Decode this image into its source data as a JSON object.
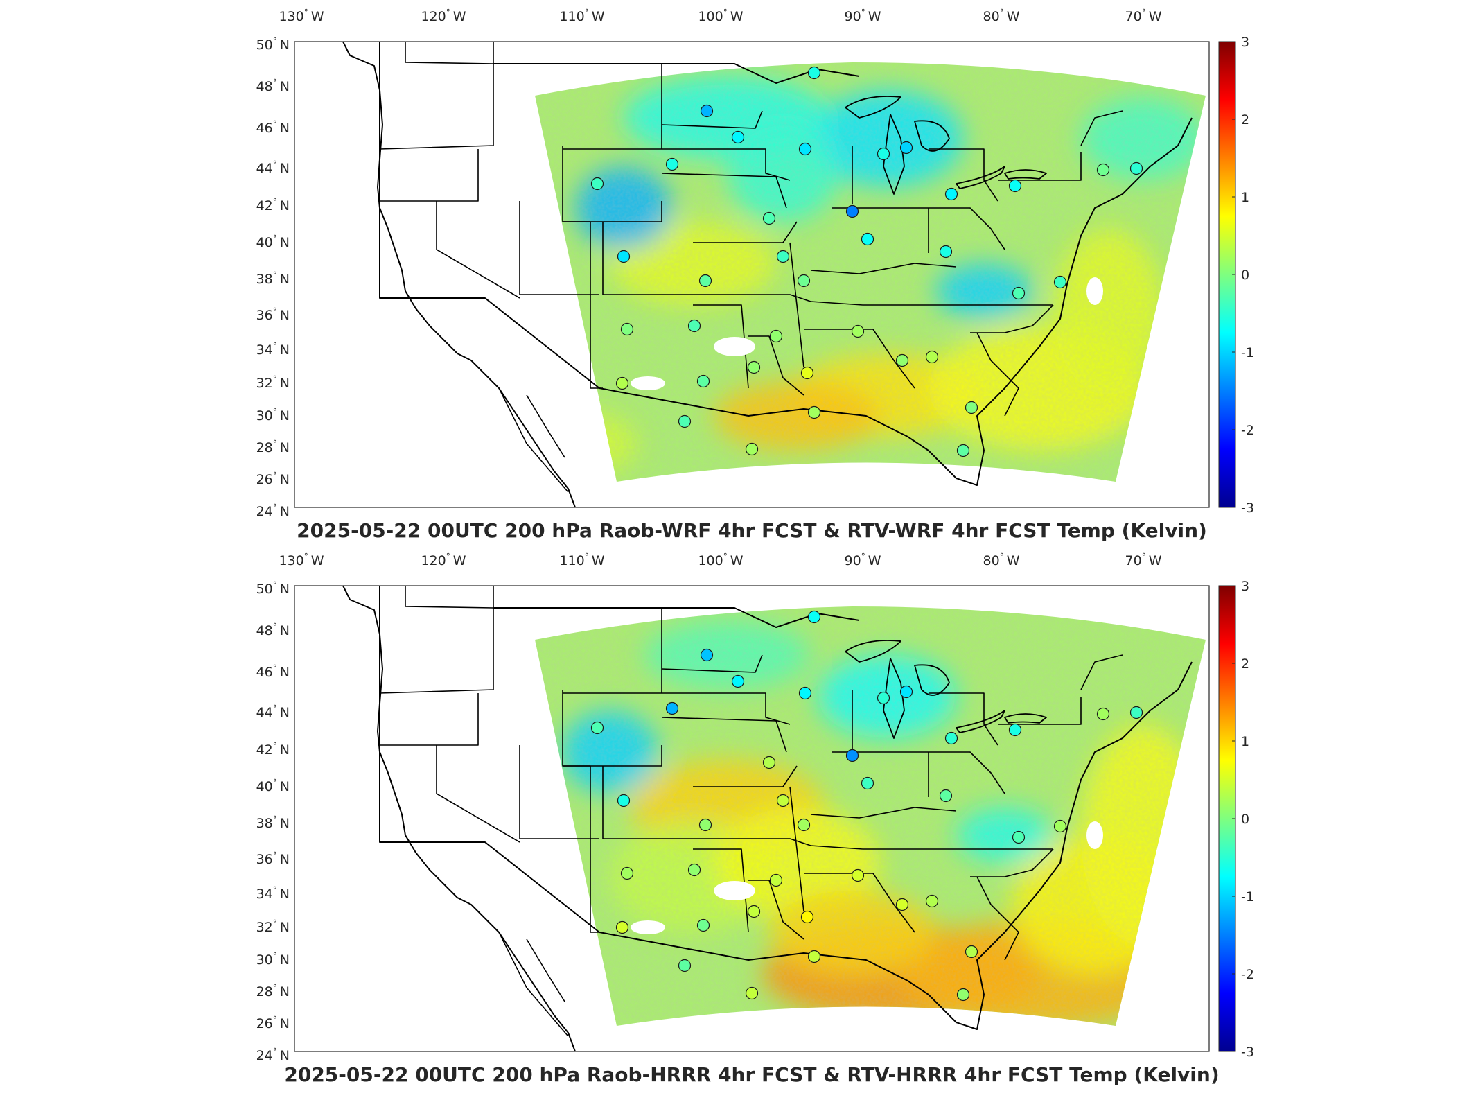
{
  "panels": [
    {
      "id": "wrf",
      "title": "2025-05-22 00UTC 200 hPa Raob-WRF 4hr FCST & RTV-WRF 4hr FCST Temp (Kelvin)",
      "lon_labels": [
        "130",
        "120",
        "110",
        "100",
        "90",
        "80",
        "70"
      ],
      "lon_hemi": "W",
      "lat_labels": [
        "50",
        "48",
        "46",
        "44",
        "42",
        "40",
        "38",
        "36",
        "34",
        "32",
        "30",
        "28",
        "26",
        "24"
      ],
      "lat_hemi": "N",
      "degree_symbol": "°",
      "colorbar_ticks": [
        "3",
        "2",
        "1",
        "0",
        "-1",
        "-2",
        "-3"
      ],
      "raob_station_values": [
        -0.6,
        -1.2,
        -0.8,
        -0.9,
        -0.6,
        -1.0,
        -1.5,
        -0.7,
        -0.4,
        -0.6,
        -0.8,
        -0.7,
        -0.3,
        -0.4,
        -0.6,
        -0.9,
        -0.2,
        0.1,
        -0.3,
        -0.4,
        -0.1,
        -0.5,
        0.2,
        0.1,
        0.3,
        0.0,
        -0.3,
        0.1,
        -0.2,
        0.6,
        0.2,
        0.0,
        0.3,
        -0.3,
        0.2,
        -0.2,
        -0.1
      ]
    },
    {
      "id": "hrrr",
      "title": "2025-05-22 00UTC 200 hPa Raob-HRRR 4hr FCST & RTV-HRRR 4hr FCST Temp (Kelvin)",
      "lon_labels": [
        "130",
        "120",
        "110",
        "100",
        "90",
        "80",
        "70"
      ],
      "lon_hemi": "W",
      "lat_labels": [
        "50",
        "48",
        "46",
        "44",
        "42",
        "40",
        "38",
        "36",
        "34",
        "32",
        "30",
        "28",
        "26",
        "24"
      ],
      "lat_hemi": "N",
      "degree_symbol": "°",
      "colorbar_ticks": [
        "3",
        "2",
        "1",
        "0",
        "-1",
        "-2",
        "-3"
      ],
      "raob_station_values": [
        -0.7,
        -1.1,
        -0.8,
        -0.8,
        -0.5,
        -0.9,
        -1.4,
        -0.6,
        -0.3,
        -1.2,
        -0.5,
        -0.4,
        0.3,
        0.4,
        -0.2,
        -0.6,
        0.1,
        0.4,
        -0.3,
        0.2,
        0.2,
        -0.4,
        0.5,
        0.5,
        0.3,
        0.2,
        0.1,
        0.4,
        -0.1,
        0.8,
        0.4,
        0.3,
        0.5,
        -0.2,
        0.4,
        0.1,
        0.2
      ]
    }
  ],
  "colormap": "jet",
  "colormap_range": [
    -3,
    3
  ],
  "units": "Kelvin"
}
